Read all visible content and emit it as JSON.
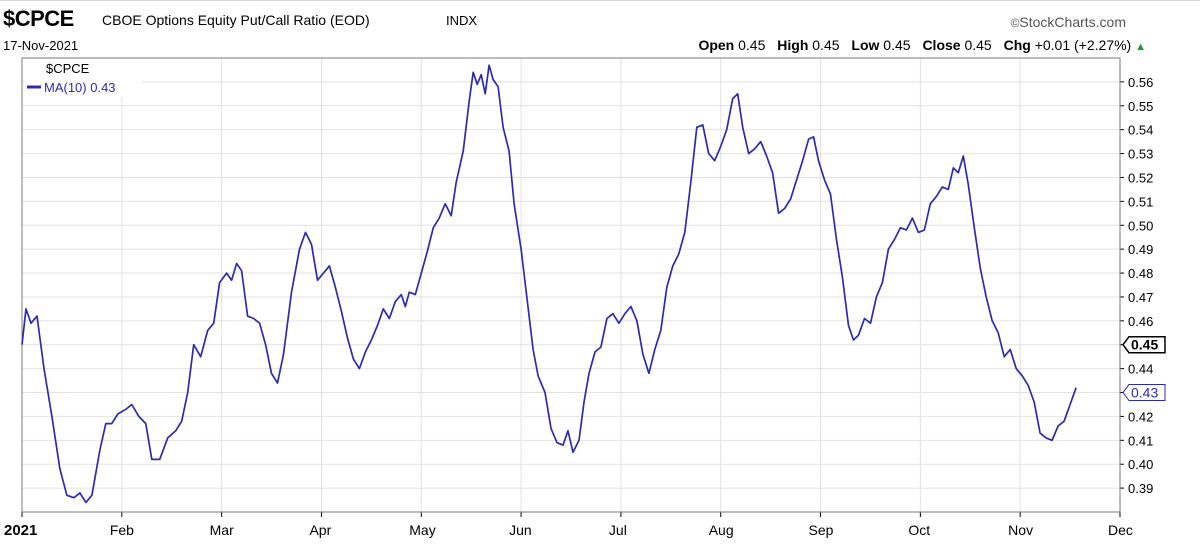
{
  "header": {
    "symbol": "$CPCE",
    "description": "CBOE Options Equity Put/Call Ratio (EOD)",
    "exchange": "INDX",
    "date": "17-Nov-2021",
    "brand": "StockCharts.com",
    "copyright_glyph": "©"
  },
  "quote": {
    "open_label": "Open",
    "open": "0.45",
    "high_label": "High",
    "high": "0.45",
    "low_label": "Low",
    "low": "0.45",
    "close_label": "Close",
    "close": "0.45",
    "chg_label": "Chg",
    "chg": "+0.01 (+2.27%)",
    "trend_icon": "up-triangle-icon",
    "trend_color": "#1a9a2e"
  },
  "chart_data": {
    "type": "line",
    "title": "",
    "xlabel": "",
    "ylabel": "",
    "legend_position": "top-left",
    "legend": [
      "$CPCE",
      "MA(10) 0.43"
    ],
    "series_color": "#2b2bb0",
    "grid": true,
    "ylim": [
      0.38,
      0.57
    ],
    "y_ticks": [
      "0.39",
      "0.40",
      "0.41",
      "0.42",
      "0.43",
      "0.44",
      "0.45",
      "0.46",
      "0.47",
      "0.48",
      "0.49",
      "0.50",
      "0.51",
      "0.52",
      "0.53",
      "0.54",
      "0.55",
      "0.56"
    ],
    "x_tick_labels": [
      "2021",
      "Feb",
      "Mar",
      "Apr",
      "May",
      "Jun",
      "Jul",
      "Aug",
      "Sep",
      "Oct",
      "Nov",
      "Dec"
    ],
    "x_month_positions": [
      0,
      1,
      2,
      3,
      4,
      5,
      6,
      7,
      8,
      9,
      10,
      11
    ],
    "xlim": [
      0,
      11
    ],
    "price_marker": "0.45",
    "ma_marker": "0.43",
    "series": [
      {
        "name": "MA(10) 0.43",
        "points": [
          [
            0.0,
            0.45
          ],
          [
            0.04,
            0.465
          ],
          [
            0.09,
            0.459
          ],
          [
            0.15,
            0.462
          ],
          [
            0.22,
            0.44
          ],
          [
            0.3,
            0.42
          ],
          [
            0.38,
            0.398
          ],
          [
            0.45,
            0.387
          ],
          [
            0.52,
            0.386
          ],
          [
            0.58,
            0.388
          ],
          [
            0.64,
            0.384
          ],
          [
            0.7,
            0.387
          ],
          [
            0.78,
            0.406
          ],
          [
            0.84,
            0.417
          ],
          [
            0.9,
            0.417
          ],
          [
            0.96,
            0.421
          ],
          [
            1.04,
            0.423
          ],
          [
            1.1,
            0.425
          ],
          [
            1.17,
            0.42
          ],
          [
            1.24,
            0.417
          ],
          [
            1.3,
            0.402
          ],
          [
            1.38,
            0.402
          ],
          [
            1.46,
            0.411
          ],
          [
            1.54,
            0.414
          ],
          [
            1.6,
            0.418
          ],
          [
            1.66,
            0.43
          ],
          [
            1.72,
            0.45
          ],
          [
            1.79,
            0.445
          ],
          [
            1.86,
            0.456
          ],
          [
            1.92,
            0.459
          ],
          [
            1.98,
            0.476
          ],
          [
            2.05,
            0.48
          ],
          [
            2.1,
            0.477
          ],
          [
            2.15,
            0.484
          ],
          [
            2.2,
            0.481
          ],
          [
            2.26,
            0.462
          ],
          [
            2.32,
            0.461
          ],
          [
            2.38,
            0.459
          ],
          [
            2.44,
            0.45
          ],
          [
            2.5,
            0.438
          ],
          [
            2.56,
            0.434
          ],
          [
            2.62,
            0.446
          ],
          [
            2.7,
            0.472
          ],
          [
            2.78,
            0.49
          ],
          [
            2.84,
            0.497
          ],
          [
            2.9,
            0.492
          ],
          [
            2.96,
            0.477
          ],
          [
            3.02,
            0.48
          ],
          [
            3.08,
            0.483
          ],
          [
            3.14,
            0.474
          ],
          [
            3.2,
            0.464
          ],
          [
            3.26,
            0.453
          ],
          [
            3.32,
            0.444
          ],
          [
            3.38,
            0.44
          ],
          [
            3.44,
            0.447
          ],
          [
            3.5,
            0.452
          ],
          [
            3.56,
            0.458
          ],
          [
            3.62,
            0.465
          ],
          [
            3.68,
            0.461
          ],
          [
            3.74,
            0.468
          ],
          [
            3.8,
            0.471
          ],
          [
            3.84,
            0.466
          ],
          [
            3.88,
            0.472
          ],
          [
            3.94,
            0.471
          ],
          [
            4.0,
            0.48
          ],
          [
            4.06,
            0.489
          ],
          [
            4.12,
            0.499
          ],
          [
            4.18,
            0.503
          ],
          [
            4.24,
            0.509
          ],
          [
            4.3,
            0.504
          ],
          [
            4.35,
            0.518
          ],
          [
            4.42,
            0.531
          ],
          [
            4.48,
            0.552
          ],
          [
            4.52,
            0.564
          ],
          [
            4.56,
            0.559
          ],
          [
            4.6,
            0.563
          ],
          [
            4.64,
            0.555
          ],
          [
            4.68,
            0.567
          ],
          [
            4.72,
            0.561
          ],
          [
            4.77,
            0.558
          ],
          [
            4.82,
            0.541
          ],
          [
            4.88,
            0.531
          ],
          [
            4.93,
            0.509
          ],
          [
            5.0,
            0.49
          ],
          [
            5.06,
            0.469
          ],
          [
            5.12,
            0.448
          ],
          [
            5.17,
            0.437
          ],
          [
            5.24,
            0.43
          ],
          [
            5.3,
            0.415
          ],
          [
            5.36,
            0.409
          ],
          [
            5.42,
            0.408
          ],
          [
            5.47,
            0.414
          ],
          [
            5.52,
            0.405
          ],
          [
            5.58,
            0.41
          ],
          [
            5.63,
            0.426
          ],
          [
            5.68,
            0.438
          ],
          [
            5.74,
            0.447
          ],
          [
            5.8,
            0.449
          ],
          [
            5.86,
            0.461
          ],
          [
            5.92,
            0.463
          ],
          [
            5.98,
            0.459
          ],
          [
            6.04,
            0.463
          ],
          [
            6.1,
            0.466
          ],
          [
            6.16,
            0.46
          ],
          [
            6.22,
            0.446
          ],
          [
            6.28,
            0.438
          ],
          [
            6.34,
            0.448
          ],
          [
            6.4,
            0.456
          ],
          [
            6.46,
            0.474
          ],
          [
            6.52,
            0.483
          ],
          [
            6.58,
            0.488
          ],
          [
            6.64,
            0.497
          ],
          [
            6.7,
            0.518
          ],
          [
            6.76,
            0.541
          ],
          [
            6.82,
            0.542
          ],
          [
            6.88,
            0.53
          ],
          [
            6.94,
            0.527
          ],
          [
            7.0,
            0.533
          ],
          [
            7.06,
            0.54
          ],
          [
            7.12,
            0.553
          ],
          [
            7.17,
            0.555
          ],
          [
            7.22,
            0.541
          ],
          [
            7.28,
            0.53
          ],
          [
            7.34,
            0.532
          ],
          [
            7.4,
            0.535
          ],
          [
            7.46,
            0.529
          ],
          [
            7.52,
            0.522
          ],
          [
            7.58,
            0.505
          ],
          [
            7.64,
            0.507
          ],
          [
            7.7,
            0.511
          ],
          [
            7.76,
            0.519
          ],
          [
            7.82,
            0.527
          ],
          [
            7.88,
            0.536
          ],
          [
            7.93,
            0.537
          ],
          [
            7.98,
            0.527
          ],
          [
            8.04,
            0.519
          ],
          [
            8.1,
            0.513
          ],
          [
            8.16,
            0.494
          ],
          [
            8.22,
            0.478
          ],
          [
            8.28,
            0.458
          ],
          [
            8.33,
            0.452
          ],
          [
            8.38,
            0.454
          ],
          [
            8.44,
            0.461
          ],
          [
            8.5,
            0.459
          ],
          [
            8.56,
            0.47
          ],
          [
            8.62,
            0.476
          ],
          [
            8.68,
            0.49
          ],
          [
            8.74,
            0.494
          ],
          [
            8.8,
            0.499
          ],
          [
            8.86,
            0.498
          ],
          [
            8.92,
            0.503
          ],
          [
            8.98,
            0.497
          ],
          [
            9.04,
            0.498
          ],
          [
            9.1,
            0.509
          ],
          [
            9.16,
            0.512
          ],
          [
            9.22,
            0.516
          ],
          [
            9.28,
            0.515
          ],
          [
            9.33,
            0.524
          ],
          [
            9.38,
            0.522
          ],
          [
            9.43,
            0.529
          ],
          [
            9.48,
            0.517
          ],
          [
            9.54,
            0.499
          ],
          [
            9.6,
            0.482
          ],
          [
            9.66,
            0.47
          ],
          [
            9.72,
            0.46
          ],
          [
            9.78,
            0.455
          ],
          [
            9.84,
            0.445
          ],
          [
            9.9,
            0.448
          ],
          [
            9.96,
            0.44
          ],
          [
            10.02,
            0.437
          ],
          [
            10.08,
            0.433
          ],
          [
            10.14,
            0.426
          ],
          [
            10.2,
            0.413
          ],
          [
            10.26,
            0.411
          ],
          [
            10.32,
            0.41
          ],
          [
            10.38,
            0.416
          ],
          [
            10.44,
            0.418
          ],
          [
            10.5,
            0.425
          ],
          [
            10.56,
            0.432
          ]
        ]
      }
    ]
  }
}
